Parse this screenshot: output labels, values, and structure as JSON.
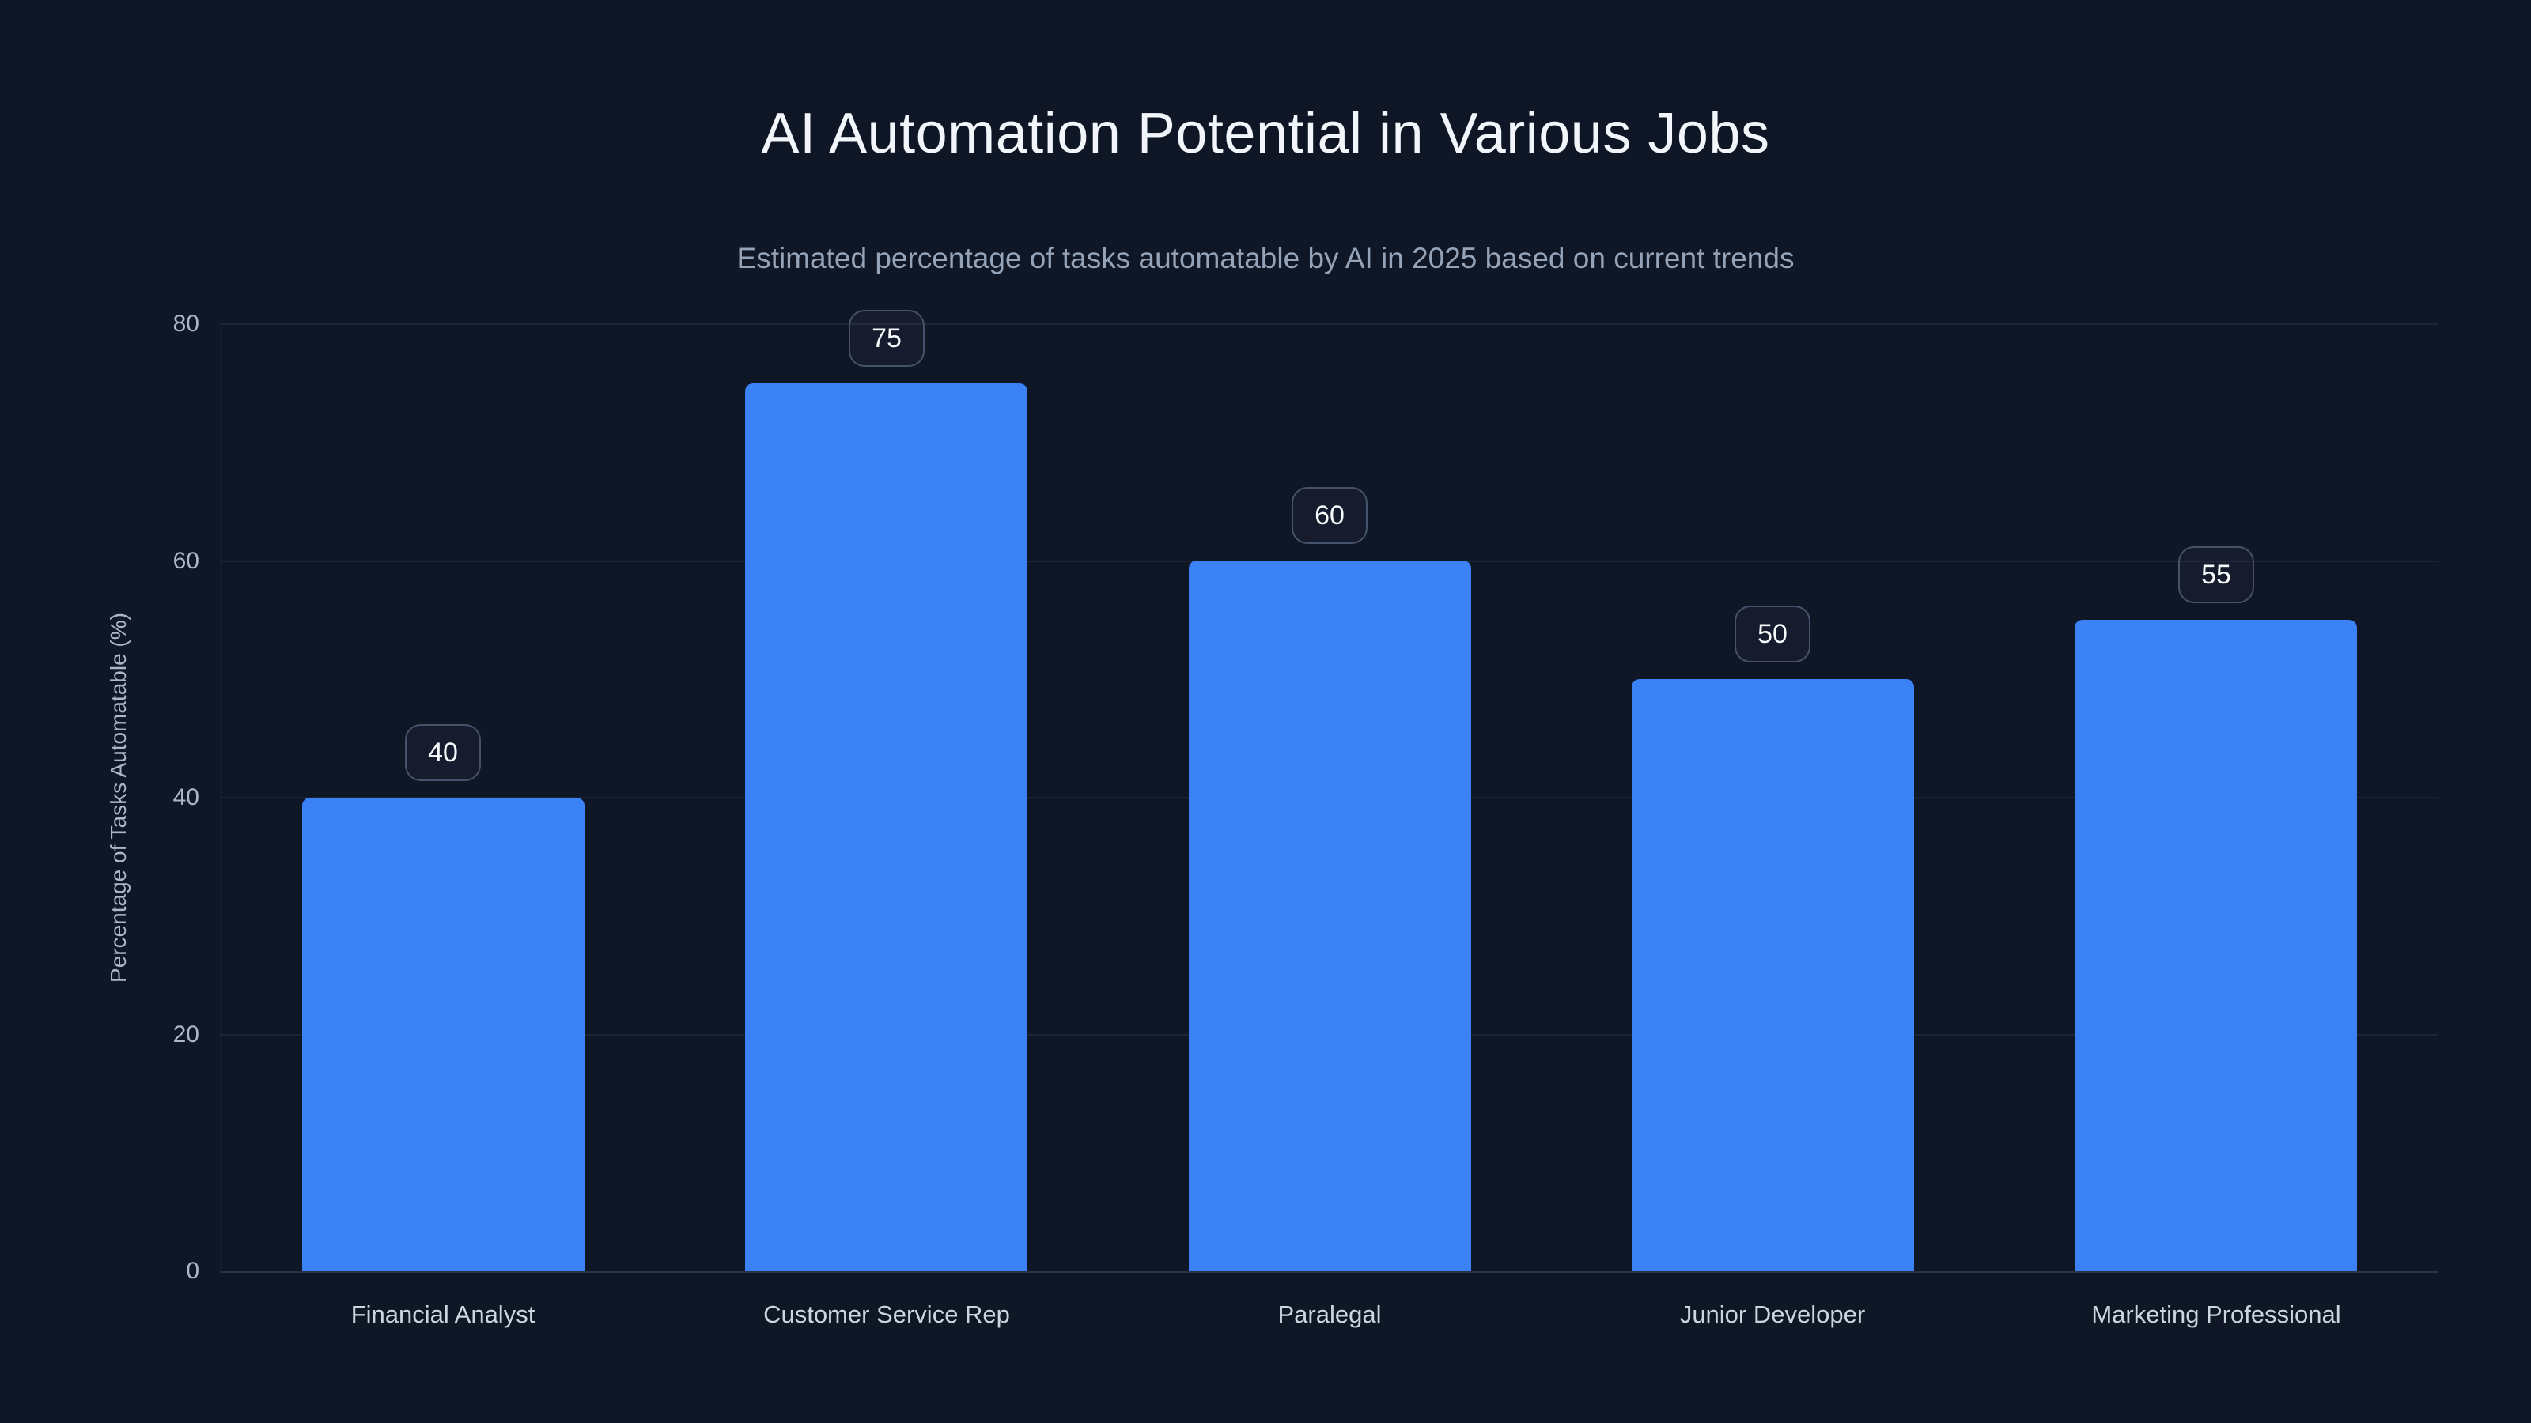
{
  "chart_data": {
    "type": "bar",
    "title": "AI Automation Potential in Various Jobs",
    "subtitle": "Estimated percentage of tasks automatable by AI in 2025 based on current trends",
    "categories": [
      "Financial Analyst",
      "Customer Service Rep",
      "Paralegal",
      "Junior Developer",
      "Marketing Professional"
    ],
    "values": [
      40,
      75,
      60,
      50,
      55
    ],
    "value_labels": [
      "40",
      "75",
      "60",
      "50",
      "55"
    ],
    "xlabel": "",
    "ylabel": "Percentage of Tasks Automatable (%)",
    "yticks": [
      80,
      60,
      40,
      20,
      0
    ],
    "ylim": [
      0,
      80
    ],
    "grid": "horizontal-only",
    "legend": "none",
    "colors": {
      "background": "#0f1626",
      "bar": "#3b82f6",
      "title_text": "#f2f6fa",
      "subtitle_text": "#94a3b8",
      "tick_text": "#a9b7c9",
      "category_text": "#cbd5e1",
      "badge_border": "#46526a",
      "badge_text": "#f8fafc"
    }
  }
}
